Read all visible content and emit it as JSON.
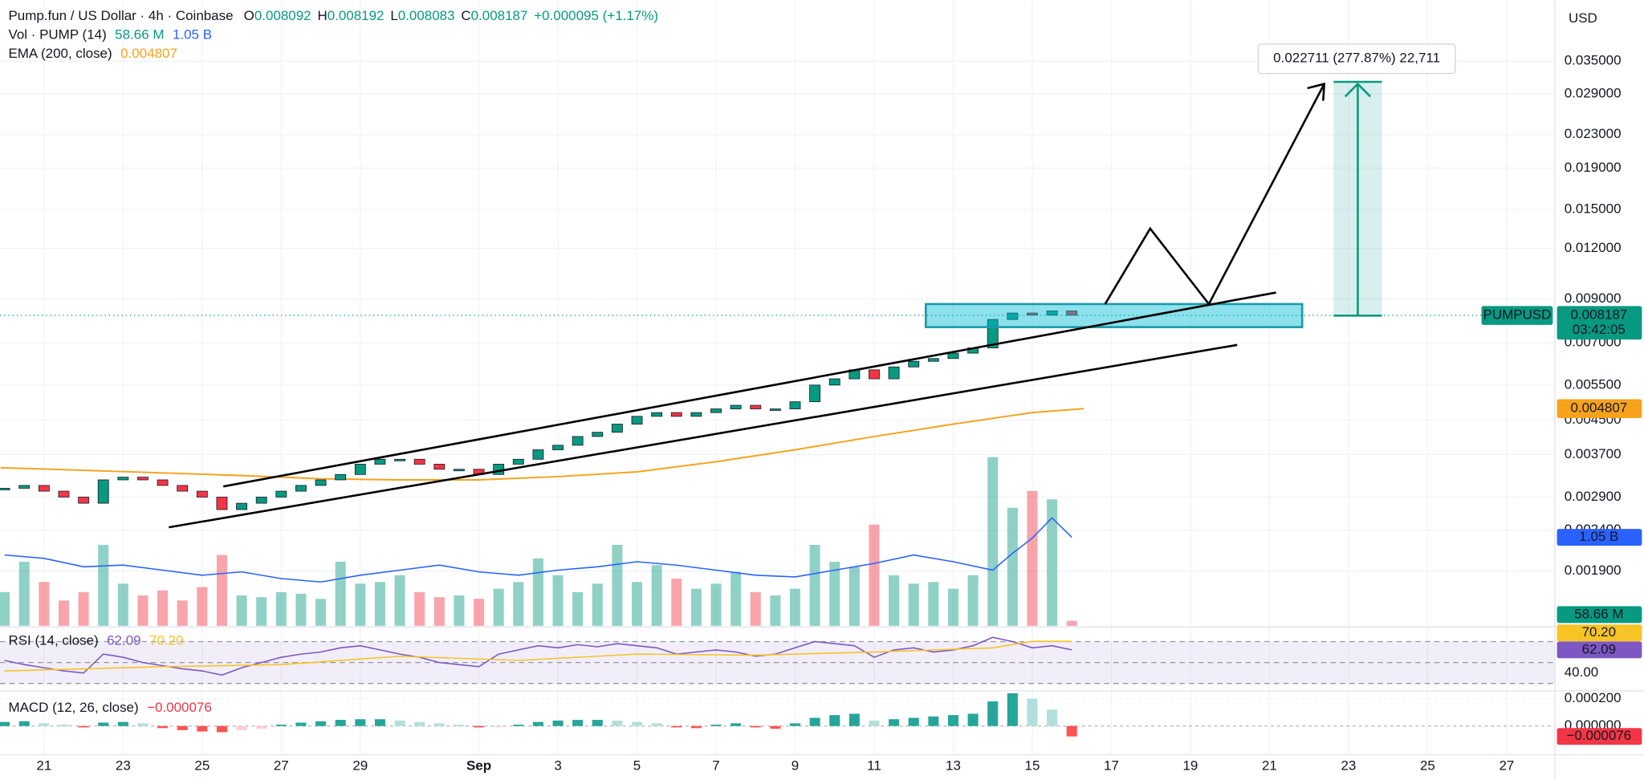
{
  "header": {
    "title": "Pump.fun / US Dollar · 4h · Coinbase",
    "o_label": "O",
    "open": 0.008092,
    "h_label": "H",
    "high": 0.008192,
    "l_label": "L",
    "low": 0.008083,
    "c_label": "C",
    "close": 0.008187,
    "change": "+0.000095 (+1.17%)",
    "currency": "USD"
  },
  "chart_data": {
    "type": "candlestick",
    "x": [
      20,
      20.5,
      21,
      21.5,
      22,
      22.5,
      23,
      23.5,
      24,
      24.5,
      25,
      25.5,
      26,
      26.5,
      27,
      27.5,
      28,
      28.5,
      29,
      29.5,
      30,
      30.5,
      31,
      31.5,
      32,
      32.5,
      33,
      33.5,
      34,
      34.5,
      35,
      35.5,
      36,
      36.5,
      37,
      37.5,
      38,
      38.5,
      39,
      39.5,
      40,
      40.5,
      41,
      41.5,
      42,
      42.5,
      43,
      43.5,
      44,
      44.5,
      45,
      45.5,
      46,
      46.5,
      47
    ],
    "xlim": [
      19.886,
      59.22
    ],
    "xticks": [
      {
        "value": 21,
        "label": "21"
      },
      {
        "value": 23,
        "label": "23"
      },
      {
        "value": 25,
        "label": "25"
      },
      {
        "value": 27,
        "label": "27"
      },
      {
        "value": 29,
        "label": "29"
      },
      {
        "value": 32,
        "label": "Sep"
      },
      {
        "value": 34,
        "label": "3"
      },
      {
        "value": 36,
        "label": "5"
      },
      {
        "value": 38,
        "label": "7"
      },
      {
        "value": 40,
        "label": "9"
      },
      {
        "value": 42,
        "label": "11"
      },
      {
        "value": 44,
        "label": "13"
      },
      {
        "value": 46,
        "label": "15"
      },
      {
        "value": 48,
        "label": "17"
      },
      {
        "value": 50,
        "label": "19"
      },
      {
        "value": 52,
        "label": "21"
      },
      {
        "value": 54,
        "label": "23"
      },
      {
        "value": 56,
        "label": "25"
      },
      {
        "value": 58,
        "label": "27"
      }
    ],
    "log_scale": true,
    "grid": true,
    "ylim": [
      0.00139,
      0.0496
    ],
    "yticks": [
      {
        "value": 0.035,
        "label": "0.035000"
      },
      {
        "value": 0.029,
        "label": "0.029000"
      },
      {
        "value": 0.023,
        "label": "0.023000"
      },
      {
        "value": 0.019,
        "label": "0.019000"
      },
      {
        "value": 0.015,
        "label": "0.015000"
      },
      {
        "value": 0.012,
        "label": "0.012000"
      },
      {
        "value": 0.009,
        "label": "0.009000"
      },
      {
        "value": 0.007,
        "label": "0.007000"
      },
      {
        "value": 0.0055,
        "label": "0.005500"
      },
      {
        "value": 0.0045,
        "label": "0.004500"
      },
      {
        "value": 0.0037,
        "label": "0.003700"
      },
      {
        "value": 0.0029,
        "label": "0.002900"
      },
      {
        "value": 0.0024,
        "label": "0.002400"
      },
      {
        "value": 0.0019,
        "label": "0.001900"
      }
    ],
    "series": [
      {
        "name": "PUMPUSD",
        "up_color": "#089981",
        "down_color": "#f23645",
        "values": [
          0.00305,
          0.0031,
          0.003,
          0.0029,
          0.0028,
          0.0032,
          0.00325,
          0.0032,
          0.0031,
          0.003,
          0.0029,
          0.0027,
          0.0028,
          0.0029,
          0.003,
          0.0031,
          0.0032,
          0.0033,
          0.0035,
          0.0036,
          0.0036,
          0.0035,
          0.0034,
          0.0034,
          0.0033,
          0.0035,
          0.0036,
          0.0038,
          0.0039,
          0.0041,
          0.0042,
          0.0044,
          0.0046,
          0.0047,
          0.0046,
          0.0047,
          0.0048,
          0.0049,
          0.0048,
          0.0048,
          0.005,
          0.0055,
          0.0057,
          0.006,
          0.0057,
          0.0061,
          0.0063,
          0.0064,
          0.0066,
          0.0068,
          0.008,
          0.0083,
          0.0082,
          0.0084,
          0.0082
        ]
      }
    ],
    "last_price": 0.008187,
    "countdown": "03:42:05",
    "ema": {
      "name": "EMA (200, close)",
      "color": "#f7a21b",
      "last": 0.004807,
      "x": [
        19.9,
        22,
        24,
        26,
        28,
        30,
        32,
        34,
        36,
        38,
        40,
        42,
        44,
        46,
        47.3
      ],
      "values": [
        0.00343,
        0.00338,
        0.00333,
        0.00328,
        0.00322,
        0.0032,
        0.0032,
        0.00326,
        0.00335,
        0.00355,
        0.0038,
        0.0041,
        0.0044,
        0.0047,
        0.004807
      ]
    },
    "volume": {
      "name": "Vol · PUMP (14)",
      "ylim": [
        0,
        2200
      ],
      "ma_color": "#2962ff",
      "values": [
        400,
        760,
        520,
        300,
        400,
        960,
        500,
        360,
        420,
        300,
        460,
        840,
        360,
        340,
        400,
        380,
        320,
        760,
        500,
        520,
        600,
        400,
        340,
        360,
        320,
        440,
        520,
        800,
        600,
        400,
        500,
        960,
        520,
        720,
        560,
        440,
        500,
        640,
        400,
        360,
        440,
        960,
        760,
        700,
        1200,
        600,
        500,
        520,
        440,
        600,
        2000,
        1400,
        1600,
        1500,
        58.66
      ],
      "ma_x": [
        20,
        21,
        22,
        23,
        24,
        25,
        26,
        27,
        28,
        29,
        30,
        31,
        32,
        33,
        34,
        35,
        36,
        37,
        38,
        39,
        40,
        41,
        42,
        43,
        44,
        45,
        45.5,
        46,
        46.5,
        47
      ],
      "ma_values": [
        840,
        800,
        700,
        720,
        660,
        600,
        640,
        560,
        520,
        600,
        660,
        720,
        640,
        600,
        660,
        700,
        760,
        720,
        660,
        600,
        580,
        660,
        740,
        840,
        760,
        660,
        860,
        1040,
        1280,
        1050
      ],
      "last_badge": {
        "value": 58.66,
        "label": "58.66 M"
      },
      "ma_badge": {
        "value": 1050,
        "label": "1.05 B"
      }
    },
    "rsi": {
      "name": "RSI (14, close)",
      "ylim": [
        24,
        82
      ],
      "color": "#7e57c2",
      "ma_color": "#f7c325",
      "levels": [
        70,
        50,
        30
      ],
      "yticks": [
        {
          "value": 40,
          "label": "40.00"
        }
      ],
      "values": [
        52,
        48,
        45,
        42,
        40,
        58,
        55,
        50,
        47,
        44,
        42,
        38,
        45,
        50,
        55,
        58,
        60,
        64,
        66,
        62,
        58,
        55,
        50,
        48,
        46,
        58,
        62,
        66,
        64,
        67,
        65,
        68,
        66,
        64,
        58,
        60,
        62,
        60,
        56,
        58,
        64,
        70,
        68,
        66,
        55,
        62,
        64,
        60,
        62,
        66,
        74,
        70,
        64,
        66,
        62
      ],
      "ma_x": [
        20,
        24,
        27,
        30,
        33,
        36,
        39,
        42,
        45,
        46,
        47
      ],
      "ma_values": [
        42,
        46,
        48,
        56,
        52,
        58,
        57,
        60,
        64,
        70.2,
        70.2
      ],
      "last_badge": {
        "value": 62.09,
        "label": "62.09"
      },
      "ma_badge": {
        "value": 70.2,
        "label": "70.20"
      }
    },
    "macd": {
      "name": "MACD (12, 26, close)",
      "ylim": [
        -0.00021,
        0.00025
      ],
      "yticks": [
        {
          "value": 0.0002,
          "label": "0.000200"
        },
        {
          "value": 0,
          "label": "0.000000"
        }
      ],
      "values": [
        3e-05,
        3.5e-05,
        2e-05,
        1e-05,
        -1e-05,
        2.5e-05,
        3e-05,
        2e-05,
        -1.5e-05,
        -3e-05,
        -4e-05,
        -4.5e-05,
        -3e-05,
        -2e-05,
        1e-05,
        2.5e-05,
        3.5e-05,
        4.5e-05,
        5e-05,
        5e-05,
        4e-05,
        3e-05,
        2e-05,
        1e-05,
        -1e-05,
        -5e-06,
        1e-05,
        3e-05,
        4e-05,
        4.5e-05,
        4.5e-05,
        4e-05,
        3e-05,
        2e-05,
        -1e-05,
        -1.5e-05,
        1e-05,
        2e-05,
        -1e-05,
        -2e-05,
        2e-05,
        6e-05,
        8e-05,
        9e-05,
        4e-05,
        5e-05,
        6e-05,
        7e-05,
        8e-05,
        9e-05,
        0.00018,
        0.00024,
        0.0002,
        0.00012,
        -7.6e-05
      ],
      "last_badge": {
        "value": -7.6e-05,
        "label": "−0.000076"
      }
    },
    "measure_label": "0.022711 (277.87%) 22,711"
  }
}
